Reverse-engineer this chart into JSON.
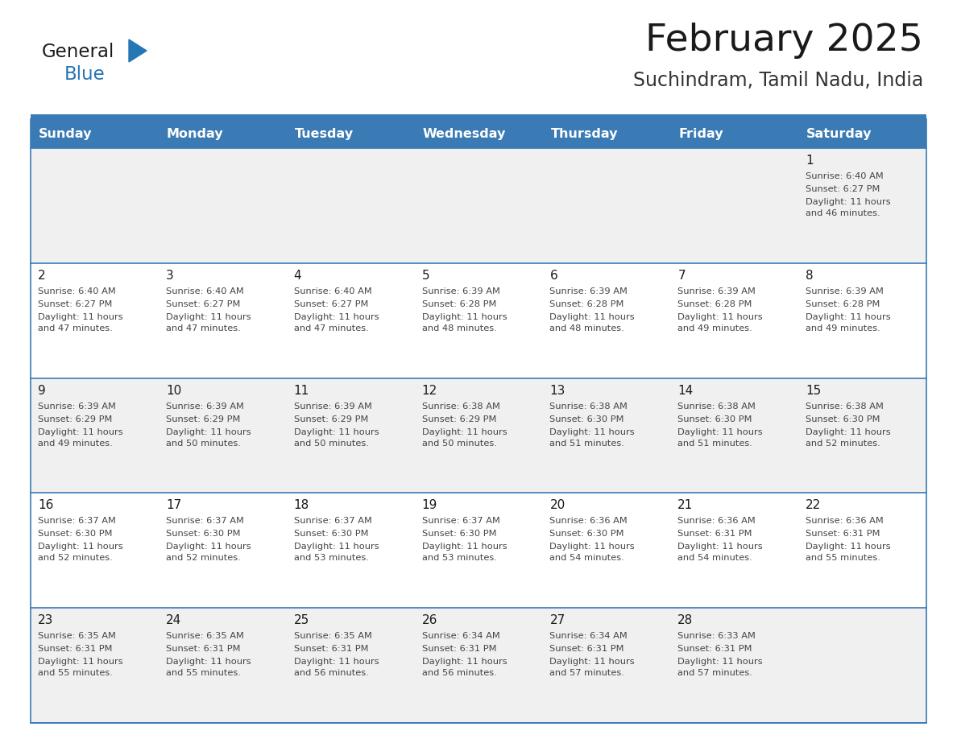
{
  "title": "February 2025",
  "subtitle": "Suchindram, Tamil Nadu, India",
  "header_bg": "#3a7ab5",
  "header_text": "#ffffff",
  "row_bg_odd": "#f0f0f0",
  "row_bg_even": "#ffffff",
  "border_color": "#3a7ab5",
  "day_headers": [
    "Sunday",
    "Monday",
    "Tuesday",
    "Wednesday",
    "Thursday",
    "Friday",
    "Saturday"
  ],
  "title_color": "#1a1a1a",
  "subtitle_color": "#333333",
  "day_number_color": "#1a1a1a",
  "cell_text_color": "#444444",
  "calendar_data": [
    [
      null,
      null,
      null,
      null,
      null,
      null,
      {
        "day": 1,
        "sunrise": "6:40 AM",
        "sunset": "6:27 PM",
        "daylight": "11 hours and 46 minutes."
      }
    ],
    [
      {
        "day": 2,
        "sunrise": "6:40 AM",
        "sunset": "6:27 PM",
        "daylight": "11 hours and 47 minutes."
      },
      {
        "day": 3,
        "sunrise": "6:40 AM",
        "sunset": "6:27 PM",
        "daylight": "11 hours and 47 minutes."
      },
      {
        "day": 4,
        "sunrise": "6:40 AM",
        "sunset": "6:27 PM",
        "daylight": "11 hours and 47 minutes."
      },
      {
        "day": 5,
        "sunrise": "6:39 AM",
        "sunset": "6:28 PM",
        "daylight": "11 hours and 48 minutes."
      },
      {
        "day": 6,
        "sunrise": "6:39 AM",
        "sunset": "6:28 PM",
        "daylight": "11 hours and 48 minutes."
      },
      {
        "day": 7,
        "sunrise": "6:39 AM",
        "sunset": "6:28 PM",
        "daylight": "11 hours and 49 minutes."
      },
      {
        "day": 8,
        "sunrise": "6:39 AM",
        "sunset": "6:28 PM",
        "daylight": "11 hours and 49 minutes."
      }
    ],
    [
      {
        "day": 9,
        "sunrise": "6:39 AM",
        "sunset": "6:29 PM",
        "daylight": "11 hours and 49 minutes."
      },
      {
        "day": 10,
        "sunrise": "6:39 AM",
        "sunset": "6:29 PM",
        "daylight": "11 hours and 50 minutes."
      },
      {
        "day": 11,
        "sunrise": "6:39 AM",
        "sunset": "6:29 PM",
        "daylight": "11 hours and 50 minutes."
      },
      {
        "day": 12,
        "sunrise": "6:38 AM",
        "sunset": "6:29 PM",
        "daylight": "11 hours and 50 minutes."
      },
      {
        "day": 13,
        "sunrise": "6:38 AM",
        "sunset": "6:30 PM",
        "daylight": "11 hours and 51 minutes."
      },
      {
        "day": 14,
        "sunrise": "6:38 AM",
        "sunset": "6:30 PM",
        "daylight": "11 hours and 51 minutes."
      },
      {
        "day": 15,
        "sunrise": "6:38 AM",
        "sunset": "6:30 PM",
        "daylight": "11 hours and 52 minutes."
      }
    ],
    [
      {
        "day": 16,
        "sunrise": "6:37 AM",
        "sunset": "6:30 PM",
        "daylight": "11 hours and 52 minutes."
      },
      {
        "day": 17,
        "sunrise": "6:37 AM",
        "sunset": "6:30 PM",
        "daylight": "11 hours and 52 minutes."
      },
      {
        "day": 18,
        "sunrise": "6:37 AM",
        "sunset": "6:30 PM",
        "daylight": "11 hours and 53 minutes."
      },
      {
        "day": 19,
        "sunrise": "6:37 AM",
        "sunset": "6:30 PM",
        "daylight": "11 hours and 53 minutes."
      },
      {
        "day": 20,
        "sunrise": "6:36 AM",
        "sunset": "6:30 PM",
        "daylight": "11 hours and 54 minutes."
      },
      {
        "day": 21,
        "sunrise": "6:36 AM",
        "sunset": "6:31 PM",
        "daylight": "11 hours and 54 minutes."
      },
      {
        "day": 22,
        "sunrise": "6:36 AM",
        "sunset": "6:31 PM",
        "daylight": "11 hours and 55 minutes."
      }
    ],
    [
      {
        "day": 23,
        "sunrise": "6:35 AM",
        "sunset": "6:31 PM",
        "daylight": "11 hours and 55 minutes."
      },
      {
        "day": 24,
        "sunrise": "6:35 AM",
        "sunset": "6:31 PM",
        "daylight": "11 hours and 55 minutes."
      },
      {
        "day": 25,
        "sunrise": "6:35 AM",
        "sunset": "6:31 PM",
        "daylight": "11 hours and 56 minutes."
      },
      {
        "day": 26,
        "sunrise": "6:34 AM",
        "sunset": "6:31 PM",
        "daylight": "11 hours and 56 minutes."
      },
      {
        "day": 27,
        "sunrise": "6:34 AM",
        "sunset": "6:31 PM",
        "daylight": "11 hours and 57 minutes."
      },
      {
        "day": 28,
        "sunrise": "6:33 AM",
        "sunset": "6:31 PM",
        "daylight": "11 hours and 57 minutes."
      },
      null
    ]
  ],
  "logo_text_general": "General",
  "logo_text_blue": "Blue",
  "logo_color_general": "#1a1a1a",
  "logo_color_blue": "#2576b5",
  "logo_triangle_color": "#2576b5",
  "fig_width": 11.88,
  "fig_height": 9.18,
  "dpi": 100
}
